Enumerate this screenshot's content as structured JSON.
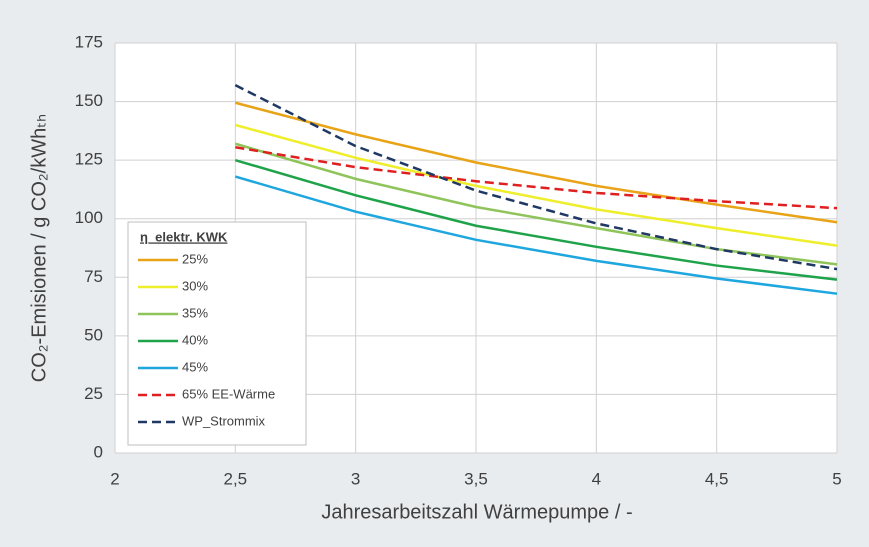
{
  "chart_data": {
    "type": "line",
    "ylabel": "CO₂-Emisionen / g CO₂/kWhₜₕ",
    "xlabel": "Jahresarbeitszahl Wärmepumpe / -",
    "legend_title": "η_elektr. KWK",
    "legend": "lower left",
    "grid": true,
    "x": [
      2.5,
      3,
      3.5,
      4,
      4.5,
      5
    ],
    "series": [
      {
        "name": "25%",
        "color": "#e8a317",
        "style": "solid",
        "values": [
          149.5,
          136,
          124,
          114,
          106,
          98.5
        ]
      },
      {
        "name": "30%",
        "color": "#eeee2a",
        "style": "solid",
        "values": [
          140,
          126,
          114,
          104,
          96,
          88.5
        ]
      },
      {
        "name": "35%",
        "color": "#8fc45a",
        "style": "solid",
        "values": [
          132,
          117,
          105,
          96,
          87,
          80.5
        ]
      },
      {
        "name": "40%",
        "color": "#1fa34a",
        "style": "solid",
        "values": [
          125,
          110,
          97,
          88,
          80,
          74
        ]
      },
      {
        "name": "45%",
        "color": "#1ea6de",
        "style": "solid",
        "values": [
          118,
          103,
          91,
          82,
          74.5,
          68
        ]
      },
      {
        "name": "65% EE-Wärme",
        "color": "#e02020",
        "style": "dashed",
        "values": [
          130.5,
          122,
          116,
          111,
          107.5,
          104.5
        ]
      },
      {
        "name": "WP_Strommix",
        "color": "#1f3864",
        "style": "dashed",
        "values": [
          157,
          131,
          112,
          98,
          87,
          78.5
        ]
      }
    ],
    "xlim": [
      2,
      5
    ],
    "xticks": [
      2,
      {
        "value": 2.5,
        "label": "2,5"
      },
      3,
      {
        "value": 3.5,
        "label": "3,5"
      },
      4,
      {
        "value": 4.5,
        "label": "4,5"
      },
      5
    ],
    "ylim": [
      0,
      175
    ],
    "yticks": [
      0,
      25,
      50,
      75,
      100,
      125,
      150,
      175
    ]
  }
}
